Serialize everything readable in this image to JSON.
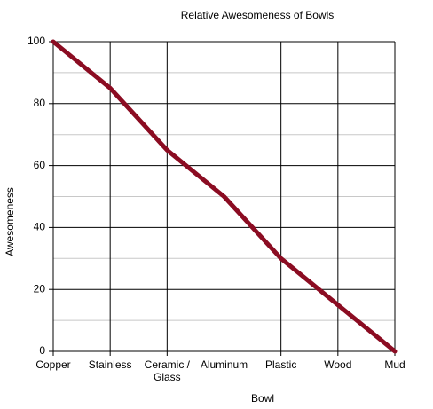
{
  "chart_data": {
    "type": "line",
    "title": "Relative Awesomeness of Bowls",
    "x_label": "Bowl",
    "y_label": "Awesomeness",
    "categories": [
      "Copper",
      "Stainless",
      "Ceramic / Glass",
      "Aluminum",
      "Plastic",
      "Wood",
      "Mud"
    ],
    "series": [
      {
        "name": "Awesomeness",
        "color": "#8b0c22",
        "values": [
          100,
          85,
          65,
          50,
          30,
          15,
          0
        ]
      }
    ],
    "ylim": [
      0,
      100
    ],
    "yticks": [
      0,
      20,
      40,
      60,
      80,
      100
    ],
    "minor_yticks": [
      10,
      30,
      50,
      70,
      90
    ],
    "grid": true
  }
}
